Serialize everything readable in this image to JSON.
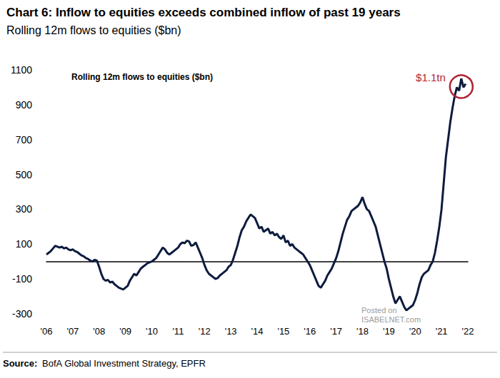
{
  "chart_data": {
    "type": "line",
    "title": "Chart 6: Inflow to equities exceeds combined inflow of past 19 years",
    "subtitle": "Rolling 12m flows to equities ($bn)",
    "inner_label": "Rolling 12m flows to equities ($bn)",
    "peak_label": "$1.1tn",
    "source_label": "Source:",
    "source": "BofA Global Investment Strategy, EPFR",
    "watermark": [
      "Posted on",
      "ISABELNET.com"
    ],
    "color": "#0d1b3e",
    "grid": false,
    "categories": [
      "'06",
      null,
      null,
      null,
      null,
      null,
      null,
      null,
      null,
      null,
      null,
      null,
      "'07",
      null,
      null,
      null,
      null,
      null,
      null,
      null,
      null,
      null,
      null,
      null,
      "'08",
      null,
      null,
      null,
      null,
      null,
      null,
      null,
      null,
      null,
      null,
      null,
      "'09",
      null,
      null,
      null,
      null,
      null,
      null,
      null,
      null,
      null,
      null,
      null,
      "'10",
      null,
      null,
      null,
      null,
      null,
      null,
      null,
      null,
      null,
      null,
      null,
      "'11",
      null,
      null,
      null,
      null,
      null,
      null,
      null,
      null,
      null,
      null,
      null,
      "'12",
      null,
      null,
      null,
      null,
      null,
      null,
      null,
      null,
      null,
      null,
      null,
      "'13",
      null,
      null,
      null,
      null,
      null,
      null,
      null,
      null,
      null,
      null,
      null,
      "'14",
      null,
      null,
      null,
      null,
      null,
      null,
      null,
      null,
      null,
      null,
      null,
      "'15",
      null,
      null,
      null,
      null,
      null,
      null,
      null,
      null,
      null,
      null,
      null,
      "'16",
      null,
      null,
      null,
      null,
      null,
      null,
      null,
      null,
      null,
      null,
      null,
      "'17",
      null,
      null,
      null,
      null,
      null,
      null,
      null,
      null,
      null,
      null,
      null,
      "'18",
      null,
      null,
      null,
      null,
      null,
      null,
      null,
      null,
      null,
      null,
      null,
      "'19",
      null,
      null,
      null,
      null,
      null,
      null,
      null,
      null,
      null,
      null,
      null,
      "'20",
      null,
      null,
      null,
      null,
      null,
      null,
      null,
      null,
      null,
      null,
      null,
      "'21",
      null,
      null,
      null,
      null,
      null,
      null,
      null,
      null,
      null,
      null,
      null,
      "'22"
    ],
    "values": [
      40,
      50,
      60,
      75,
      90,
      85,
      80,
      85,
      75,
      80,
      70,
      65,
      70,
      60,
      55,
      45,
      35,
      30,
      20,
      15,
      5,
      0,
      10,
      5,
      -30,
      -70,
      -100,
      -110,
      -105,
      -120,
      -115,
      -130,
      -140,
      -150,
      -155,
      -160,
      -150,
      -140,
      -110,
      -90,
      -70,
      -80,
      -60,
      -40,
      -30,
      -20,
      -10,
      -5,
      0,
      10,
      20,
      40,
      60,
      80,
      70,
      50,
      40,
      50,
      60,
      70,
      80,
      100,
      110,
      105,
      120,
      115,
      90,
      95,
      110,
      80,
      50,
      20,
      -20,
      -50,
      -70,
      -80,
      -90,
      -100,
      -95,
      -80,
      -70,
      -60,
      -50,
      -30,
      -20,
      10,
      50,
      90,
      140,
      180,
      200,
      230,
      250,
      270,
      260,
      250,
      220,
      190,
      200,
      170,
      180,
      190,
      160,
      170,
      150,
      160,
      140,
      130,
      150,
      110,
      120,
      90,
      100,
      80,
      70,
      60,
      50,
      40,
      20,
      0,
      -20,
      -50,
      -80,
      -110,
      -140,
      -150,
      -130,
      -110,
      -80,
      -60,
      -40,
      -10,
      20,
      60,
      110,
      160,
      200,
      240,
      260,
      290,
      300,
      310,
      320,
      340,
      370,
      330,
      300,
      290,
      260,
      230,
      200,
      150,
      100,
      50,
      0,
      -40,
      -100,
      -150,
      -200,
      -240,
      -220,
      -200,
      -230,
      -260,
      -280,
      -270,
      -260,
      -250,
      -220,
      -180,
      -130,
      -90,
      -70,
      -60,
      -50,
      -20,
      0,
      50,
      120,
      200,
      300,
      450,
      600,
      700,
      800,
      880,
      950,
      1000,
      980,
      1050,
      1000,
      1020,
      null
    ],
    "ylim": [
      -300,
      1100
    ],
    "yticks": [
      -300,
      -100,
      100,
      300,
      500,
      700,
      900,
      1100
    ]
  }
}
